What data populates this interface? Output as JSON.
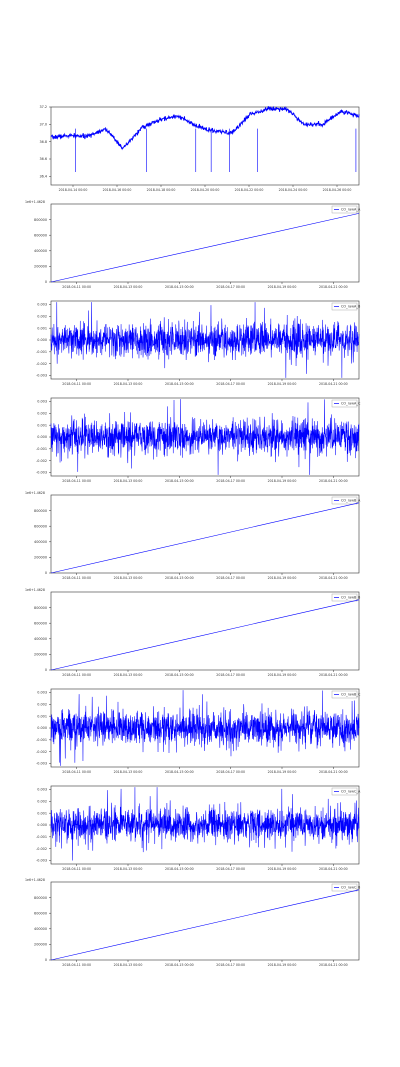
{
  "colors": {
    "series": "#0000ff",
    "axes": "#333333",
    "background": "#ffffff"
  },
  "chart_data": [
    {
      "type": "line",
      "title": "",
      "xlabel": "",
      "ylabel": "",
      "x_tick_labels": [
        "2018-04-14 00:00",
        "2018-04-16 00:00",
        "2018-04-18 00:00",
        "2018-04-20 00:00",
        "2018-04-22 00:00",
        "2018-04-24 00:00",
        "2018-04-26 00:00"
      ],
      "y_tick_labels": [
        "36.4",
        "36.6",
        "36.8",
        "37.0",
        "37.2"
      ],
      "ylim": [
        36.3,
        37.2
      ],
      "offset_label": "",
      "legend": "",
      "legend_position": "",
      "grid": false,
      "series": [
        {
          "values": [
            36.85,
            36.87,
            36.86,
            36.95,
            36.72,
            36.96,
            37.05,
            37.1,
            36.98,
            36.92,
            36.9,
            37.12,
            37.18,
            37.18,
            37.0,
            37.0,
            37.15,
            37.1
          ]
        }
      ]
    },
    {
      "type": "line",
      "title": "",
      "xlabel": "",
      "ylabel": "",
      "x_tick_labels": [
        "2018-04-11 00:00",
        "2018-04-13 00:00",
        "2018-04-15 00:00",
        "2018-04-17 00:00",
        "2018-04-19 00:00",
        "2018-04-21 00:00"
      ],
      "y_tick_labels": [
        "0",
        "200000",
        "400000",
        "600000",
        "800000"
      ],
      "ylim": [
        0,
        1000000
      ],
      "offset_label": "1e6+1.4628",
      "legend": "CO_rawA_A",
      "legend_position": "top-right",
      "grid": false,
      "series": [
        {
          "name": "CO_rawA_A",
          "values": [
            0,
            880000
          ]
        }
      ]
    },
    {
      "type": "line",
      "title": "",
      "xlabel": "",
      "ylabel": "",
      "x_tick_labels": [
        "2018-04-11 00:00",
        "2018-04-13 00:00",
        "2018-04-15 00:00",
        "2018-04-17 00:00",
        "2018-04-19 00:00",
        "2018-04-21 00:00"
      ],
      "y_tick_labels": [
        "-0.003",
        "-0.002",
        "-0.001",
        "0.000",
        "0.001",
        "0.002",
        "0.003"
      ],
      "ylim": [
        -0.0033,
        0.0033
      ],
      "offset_label": "",
      "legend": "CO_rawA_B",
      "legend_position": "top-right",
      "grid": false,
      "series": [
        {
          "name": "CO_rawA_B",
          "values": [
            0.0,
            0.0
          ]
        }
      ]
    },
    {
      "type": "line",
      "title": "",
      "xlabel": "",
      "ylabel": "",
      "x_tick_labels": [
        "2018-04-11 00:00",
        "2018-04-13 00:00",
        "2018-04-15 00:00",
        "2018-04-17 00:00",
        "2018-04-19 00:00",
        "2018-04-21 00:00"
      ],
      "y_tick_labels": [
        "-0.003",
        "-0.002",
        "-0.001",
        "0.000",
        "0.001",
        "0.002",
        "0.003"
      ],
      "ylim": [
        -0.0033,
        0.0033
      ],
      "offset_label": "",
      "legend": "CO_rawA_C",
      "legend_position": "top-right",
      "grid": false,
      "series": [
        {
          "name": "CO_rawA_C",
          "values": [
            0.0,
            0.0
          ]
        }
      ]
    },
    {
      "type": "line",
      "title": "",
      "xlabel": "",
      "ylabel": "",
      "x_tick_labels": [
        "2018-04-11 00:00",
        "2018-04-13 00:00",
        "2018-04-15 00:00",
        "2018-04-17 00:00",
        "2018-04-19 00:00",
        "2018-04-21 00:00"
      ],
      "y_tick_labels": [
        "0",
        "200000",
        "400000",
        "600000",
        "800000"
      ],
      "ylim": [
        0,
        1000000
      ],
      "offset_label": "1e6+1.4628",
      "legend": "CO_rawB_A",
      "legend_position": "top-right",
      "grid": false,
      "series": [
        {
          "name": "CO_rawB_A",
          "values": [
            0,
            900000
          ]
        }
      ]
    },
    {
      "type": "line",
      "title": "",
      "xlabel": "",
      "ylabel": "",
      "x_tick_labels": [
        "2018-04-11 00:00",
        "2018-04-13 00:00",
        "2018-04-15 00:00",
        "2018-04-17 00:00",
        "2018-04-19 00:00",
        "2018-04-21 00:00"
      ],
      "y_tick_labels": [
        "0",
        "200000",
        "400000",
        "600000",
        "800000"
      ],
      "ylim": [
        0,
        1000000
      ],
      "offset_label": "1e6+1.4628",
      "legend": "CO_rawB_B",
      "legend_position": "top-right",
      "grid": false,
      "series": [
        {
          "name": "CO_rawB_B",
          "values": [
            0,
            900000
          ]
        }
      ]
    },
    {
      "type": "line",
      "title": "",
      "xlabel": "",
      "ylabel": "",
      "x_tick_labels": [
        "2018-04-11 00:00",
        "2018-04-13 00:00",
        "2018-04-15 00:00",
        "2018-04-17 00:00",
        "2018-04-19 00:00",
        "2018-04-21 00:00"
      ],
      "y_tick_labels": [
        "-0.003",
        "-0.002",
        "-0.001",
        "0.000",
        "0.001",
        "0.002",
        "0.003"
      ],
      "ylim": [
        -0.0033,
        0.0033
      ],
      "offset_label": "",
      "legend": "CO_rawB_C",
      "legend_position": "top-right",
      "grid": false,
      "series": [
        {
          "name": "CO_rawB_C",
          "values": [
            0.0,
            0.0
          ]
        }
      ]
    },
    {
      "type": "line",
      "title": "",
      "xlabel": "",
      "ylabel": "",
      "x_tick_labels": [
        "2018-04-11 00:00",
        "2018-04-13 00:00",
        "2018-04-15 00:00",
        "2018-04-17 00:00",
        "2018-04-19 00:00",
        "2018-04-21 00:00"
      ],
      "y_tick_labels": [
        "-0.003",
        "-0.002",
        "-0.001",
        "0.000",
        "0.001",
        "0.002",
        "0.003"
      ],
      "ylim": [
        -0.0033,
        0.0033
      ],
      "offset_label": "",
      "legend": "CO_rawC_A",
      "legend_position": "top-right",
      "grid": false,
      "series": [
        {
          "name": "CO_rawC_A",
          "values": [
            0.0,
            0.0
          ]
        }
      ]
    },
    {
      "type": "line",
      "title": "",
      "xlabel": "",
      "ylabel": "",
      "x_tick_labels": [
        "2018-04-11 00:00",
        "2018-04-13 00:00",
        "2018-04-15 00:00",
        "2018-04-17 00:00",
        "2018-04-19 00:00",
        "2018-04-21 00:00"
      ],
      "y_tick_labels": [
        "0",
        "200000",
        "400000",
        "600000",
        "800000"
      ],
      "ylim": [
        0,
        1000000
      ],
      "offset_label": "1e6+1.4628",
      "legend": "CO_rawC_B",
      "legend_position": "top-right",
      "grid": false,
      "series": [
        {
          "name": "CO_rawC_B",
          "values": [
            0,
            900000
          ]
        }
      ]
    }
  ]
}
